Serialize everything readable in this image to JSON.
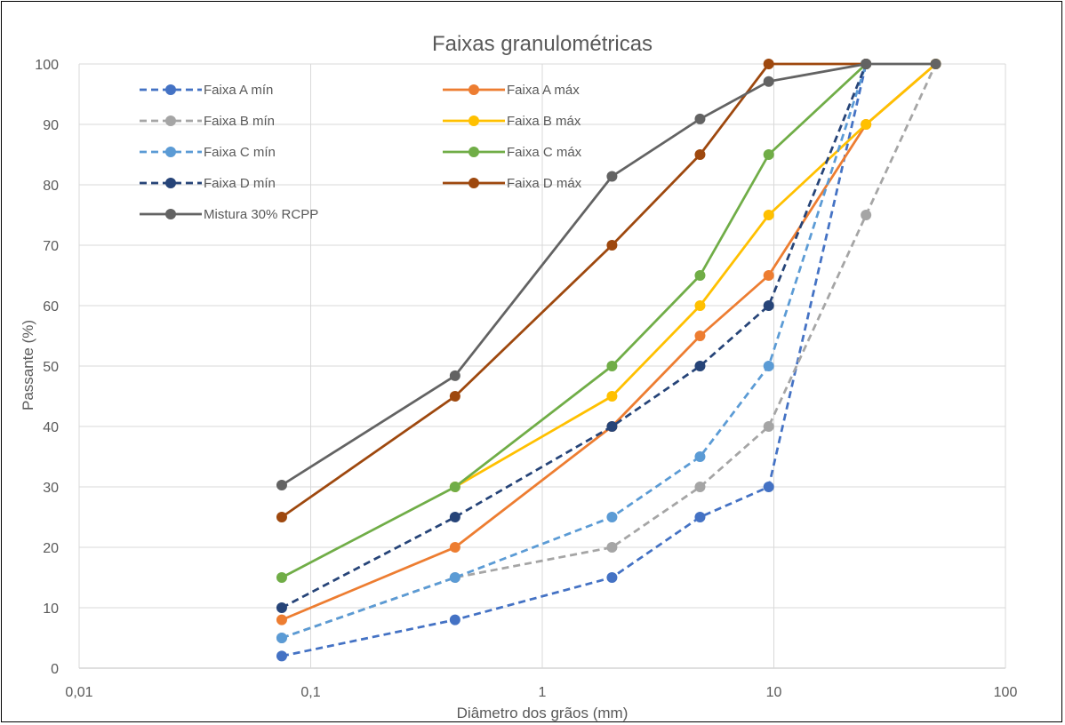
{
  "chart_data": {
    "type": "line",
    "title": "Faixas granulométricas",
    "xlabel": "Diâmetro dos grãos (mm)",
    "ylabel": "Passante (%)",
    "x_scale": "log",
    "xlim": [
      0.01,
      100
    ],
    "ylim": [
      0,
      100
    ],
    "x_ticks": [
      "0,01",
      "0,1",
      "1",
      "10",
      "100"
    ],
    "y_ticks": [
      "0",
      "10",
      "20",
      "30",
      "40",
      "50",
      "60",
      "70",
      "80",
      "90",
      "100"
    ],
    "grid": true,
    "legend_position": "top-left",
    "series": [
      {
        "name": "Faixa A mín",
        "color": "#4472C4",
        "dash": true,
        "x": [
          0.075,
          0.42,
          2,
          4.8,
          9.5,
          25
        ],
        "y": [
          2,
          8,
          15,
          25,
          30,
          100
        ]
      },
      {
        "name": "Faixa A máx",
        "color": "#ED7D31",
        "dash": false,
        "x": [
          0.075,
          0.42,
          2,
          4.8,
          9.5,
          25,
          50
        ],
        "y": [
          8,
          20,
          40,
          55,
          65,
          90,
          100
        ]
      },
      {
        "name": "Faixa B mín",
        "color": "#A5A5A5",
        "dash": true,
        "x": [
          0.075,
          0.42,
          2,
          4.8,
          9.5,
          25,
          50
        ],
        "y": [
          5,
          15,
          20,
          30,
          40,
          75,
          100
        ]
      },
      {
        "name": "Faixa B máx",
        "color": "#FFC000",
        "dash": false,
        "x": [
          0.42,
          2,
          4.8,
          9.5,
          25,
          50
        ],
        "y": [
          30,
          45,
          60,
          75,
          90,
          100
        ]
      },
      {
        "name": "Faixa C mín",
        "color": "#5B9BD5",
        "dash": true,
        "x": [
          0.075,
          0.42,
          2,
          4.8,
          9.5,
          25
        ],
        "y": [
          5,
          15,
          25,
          35,
          50,
          100
        ]
      },
      {
        "name": "Faixa C máx",
        "color": "#70AD47",
        "dash": false,
        "x": [
          0.075,
          0.42,
          2,
          4.8,
          9.5,
          25
        ],
        "y": [
          15,
          30,
          50,
          65,
          85,
          100
        ]
      },
      {
        "name": "Faixa D mín",
        "color": "#264478",
        "dash": true,
        "x": [
          0.075,
          0.42,
          2,
          4.8,
          9.5,
          25
        ],
        "y": [
          10,
          25,
          40,
          50,
          60,
          100
        ]
      },
      {
        "name": "Faixa D máx",
        "color": "#9E480E",
        "dash": false,
        "x": [
          0.075,
          0.42,
          2,
          4.8,
          9.5,
          25
        ],
        "y": [
          25,
          45,
          70,
          85,
          100,
          100
        ]
      },
      {
        "name": "Mistura 30% RCPP",
        "color": "#636363",
        "dash": false,
        "x": [
          0.075,
          0.42,
          2,
          4.8,
          9.5,
          25,
          50
        ],
        "y": [
          30.3,
          48.4,
          81.4,
          90.9,
          97.1,
          100,
          100
        ]
      }
    ]
  }
}
